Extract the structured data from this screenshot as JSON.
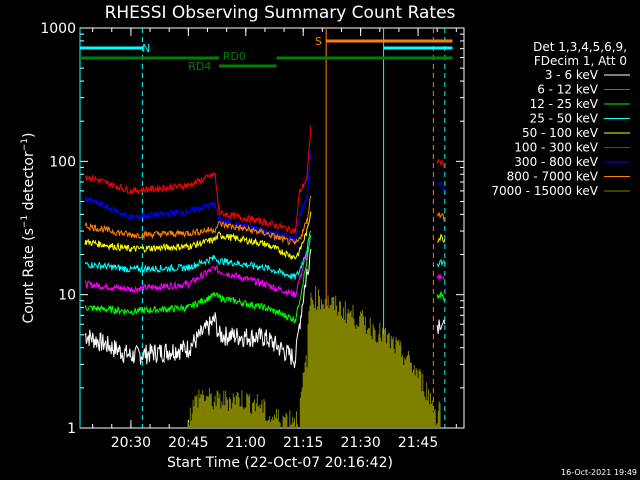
{
  "chart_data": {
    "type": "line",
    "title": "RHESSI Observing Summary Count Rates",
    "xlabel": "Start Time (22-Oct-07 20:16:42)",
    "ylabel": "Count Rate (s⁻¹ detector⁻¹)",
    "ylabel_main": "Count Rate (s",
    "ylabel_sup1": "−1",
    "ylabel_mid": " detector",
    "ylabel_sup2": "−1",
    "ylabel_end": ")",
    "y_scale": "log",
    "ylim": [
      1,
      1000
    ],
    "xlim": [
      "20:16:42",
      "21:57:00"
    ],
    "y_ticks": [
      "1",
      "10",
      "100",
      "1000"
    ],
    "x_ticks": [
      "20:30",
      "20:45",
      "21:00",
      "21:15",
      "21:30",
      "21:45"
    ],
    "grid": false,
    "legend_placement": "right",
    "legend_header": [
      "Det 1,3,4,5,6,9,",
      "FDecim 1, Att 0"
    ],
    "series": [
      {
        "name": "3 - 6 keV",
        "color": "#ffffff",
        "x": [
          "20:18",
          "20:30",
          "20:45",
          "20:52",
          "20:53",
          "21:05",
          "21:13",
          "21:14",
          "21:16",
          "21:17",
          "21:18",
          "21:50",
          "21:51",
          "21:52"
        ],
        "y": [
          5,
          3.5,
          4,
          6.5,
          5,
          4.8,
          3.3,
          6,
          15,
          22,
          null,
          6,
          6.5,
          6
        ]
      },
      {
        "name": "6 - 12 keV",
        "color": "#ff00ff",
        "x": [
          "20:18",
          "20:30",
          "20:45",
          "20:52",
          "20:53",
          "21:05",
          "21:13",
          "21:14",
          "21:16",
          "21:17",
          "21:18",
          "21:50",
          "21:51",
          "21:52"
        ],
        "y": [
          12,
          11,
          12,
          16,
          15,
          12,
          10,
          13,
          20,
          25,
          null,
          13,
          14,
          13
        ]
      },
      {
        "name": "12 - 25 keV",
        "color": "#00ff00",
        "x": [
          "20:18",
          "20:30",
          "20:45",
          "20:52",
          "20:53",
          "21:05",
          "21:13",
          "21:14",
          "21:16",
          "21:17",
          "21:18",
          "21:50",
          "21:51",
          "21:52"
        ],
        "y": [
          8,
          7.5,
          8,
          10,
          9.5,
          8,
          6.5,
          9,
          18,
          28,
          null,
          9.5,
          10,
          9
        ]
      },
      {
        "name": "25 - 50 keV",
        "color": "#00ffff",
        "x": [
          "20:18",
          "20:30",
          "20:45",
          "20:52",
          "20:53",
          "21:05",
          "21:13",
          "21:14",
          "21:16",
          "21:17",
          "21:18",
          "21:50",
          "21:51",
          "21:52"
        ],
        "y": [
          17,
          15.5,
          16,
          19,
          18,
          16,
          13.5,
          15,
          22,
          30,
          null,
          17,
          18,
          17
        ]
      },
      {
        "name": "50 - 100 keV",
        "color": "#ffff00",
        "x": [
          "20:18",
          "20:30",
          "20:45",
          "20:52",
          "20:53",
          "21:05",
          "21:13",
          "21:14",
          "21:16",
          "21:17",
          "21:18",
          "21:50",
          "21:51",
          "21:52"
        ],
        "y": [
          25,
          22,
          23,
          26,
          28,
          24,
          19,
          21,
          30,
          42,
          null,
          26,
          27,
          26
        ]
      },
      {
        "name": "100 - 300 keV",
        "color": "#ff0000",
        "x": [
          "20:18",
          "20:30",
          "20:45",
          "20:52",
          "20:53",
          "21:05",
          "21:13",
          "21:14",
          "21:16",
          "21:17",
          "21:18",
          "21:50",
          "21:51",
          "21:52"
        ],
        "y": [
          78,
          60,
          66,
          80,
          41,
          35,
          30,
          58,
          75,
          185,
          null,
          100,
          98,
          92
        ]
      },
      {
        "name": "300 - 800 keV",
        "color": "#0000ff",
        "x": [
          "20:18",
          "20:30",
          "20:45",
          "20:52",
          "20:53",
          "21:05",
          "21:13",
          "21:14",
          "21:16",
          "21:17",
          "21:18",
          "21:50",
          "21:51",
          "21:52"
        ],
        "y": [
          53,
          38,
          42,
          48,
          36,
          30,
          26,
          38,
          55,
          120,
          null,
          65,
          66,
          62
        ]
      },
      {
        "name": "800 - 7000 keV",
        "color": "#ff8000",
        "x": [
          "20:18",
          "20:30",
          "20:45",
          "20:52",
          "20:53",
          "21:05",
          "21:13",
          "21:14",
          "21:16",
          "21:17",
          "21:18",
          "21:50",
          "21:51",
          "21:52"
        ],
        "y": [
          33,
          28,
          29,
          31,
          34,
          29,
          24,
          26,
          36,
          55,
          null,
          41,
          40,
          38
        ]
      },
      {
        "name": "7000 - 15000 keV",
        "color": "#808000",
        "x": [
          "20:45",
          "20:48",
          "20:52",
          "20:58",
          "21:04",
          "21:06",
          "21:14",
          "21:15",
          "21:16",
          "21:17",
          "21:50",
          "21:51"
        ],
        "y": [
          1.2,
          1.8,
          1.6,
          1.7,
          1.5,
          1.2,
          1.2,
          2.2,
          3.5,
          10,
          1.2,
          1.8
        ]
      }
    ],
    "annotations": {
      "bars": [
        {
          "label": "N",
          "color": "#00ffff",
          "segments": [
            [
              "20:16:42",
              "20:33"
            ],
            [
              "21:36",
              "21:54"
            ]
          ]
        },
        {
          "label": "S",
          "color": "#ff8000",
          "segments": [
            [
              "21:21",
              "21:54"
            ]
          ]
        },
        {
          "label": "RD0",
          "color": "#008000",
          "segments": [
            [
              "20:16:42",
              "20:53"
            ],
            [
              "21:08",
              "21:54"
            ]
          ]
        },
        {
          "label": "RD4",
          "color": "#008000",
          "segments": [
            [
              "20:53",
              "21:08"
            ]
          ]
        }
      ],
      "vlines": [
        {
          "x": "20:16:42",
          "color": "#00ffff",
          "style": "solid"
        },
        {
          "x": "20:33",
          "color": "#00ffff",
          "style": "dashed"
        },
        {
          "x": "21:21",
          "color": "#ff8000",
          "style": "solid"
        },
        {
          "x": "21:36",
          "color": "#00ffff",
          "style": "solid"
        },
        {
          "x": "21:49",
          "color": "#ff8000",
          "style": "dashed"
        },
        {
          "x": "21:52",
          "color": "#00ffff",
          "style": "dashed"
        }
      ]
    },
    "timestamp": "16-Oct-2021 19:49"
  }
}
